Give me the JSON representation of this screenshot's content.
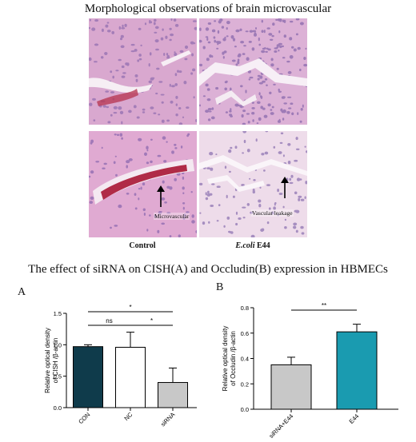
{
  "figure": {
    "title": "Morphological observations of brain microvascular",
    "labels": {
      "control": "Control",
      "ecoli_italic": "E.coli",
      "ecoli_rest": " E44",
      "microvascular": "Microvascular",
      "vascular_leakage": "Vascular leakage"
    }
  },
  "figure2": {
    "title": "The effect of siRNA on CISH(A) and Occludin(B) expression in HBMECs",
    "panel_a_label": "A",
    "panel_b_label": "B"
  },
  "chart_data": [
    {
      "type": "bar",
      "panel": "A",
      "categories": [
        "CON",
        "NC",
        "siRNA"
      ],
      "values": [
        0.97,
        0.96,
        0.4
      ],
      "errors": [
        0.03,
        0.24,
        0.23
      ],
      "colors": [
        "#0f3b4b",
        "#ffffff",
        "#c8c8c8"
      ],
      "ylabel": "Relative optical density\nof CISH /β-actin",
      "ylim": [
        0,
        1.5
      ],
      "yticks": [
        "0.0",
        "0.5",
        "1.0",
        "1.5"
      ],
      "annotations": [
        {
          "from": 0,
          "to": 1,
          "label": "ns"
        },
        {
          "from": 0,
          "to": 2,
          "label": "*"
        },
        {
          "from": 1,
          "to": 2,
          "label": "*"
        }
      ]
    },
    {
      "type": "bar",
      "panel": "B",
      "categories": [
        "siRNA+E44",
        "E44"
      ],
      "values": [
        0.35,
        0.61
      ],
      "errors": [
        0.06,
        0.06
      ],
      "colors": [
        "#c8c8c8",
        "#1a9bb0"
      ],
      "ylabel": "Relative optical density\nof Occludin /β-actin",
      "ylim": [
        0,
        0.8
      ],
      "yticks": [
        "0.0",
        "0.2",
        "0.4",
        "0.6",
        "0.8"
      ],
      "annotations": [
        {
          "from": 0,
          "to": 1,
          "label": "**"
        }
      ]
    }
  ]
}
